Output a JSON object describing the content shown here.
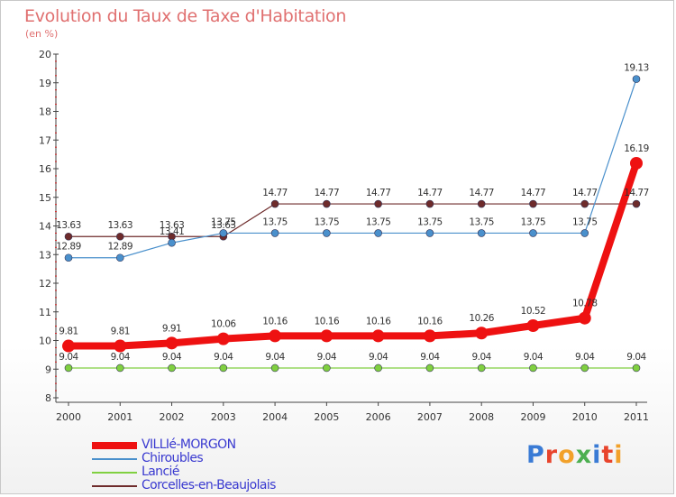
{
  "chart_data": {
    "type": "line",
    "title": "Evolution du Taux de Taxe d'Habitation",
    "subtitle": "(en %)",
    "x": [
      "2000",
      "2001",
      "2002",
      "2003",
      "2004",
      "2005",
      "2006",
      "2007",
      "2008",
      "2009",
      "2010",
      "2011"
    ],
    "ylim": [
      8,
      20
    ],
    "yticks": [
      "8",
      "9",
      "10",
      "11",
      "12",
      "13",
      "14",
      "15",
      "16",
      "17",
      "18",
      "19",
      "20"
    ],
    "grid": false,
    "legend_position": "bottom-left",
    "series": [
      {
        "name": "Corcelles-en-Beaujolais",
        "color": "#6e2b2b",
        "width": 1.2,
        "dot": 4,
        "values": [
          13.63,
          13.63,
          13.63,
          13.63,
          14.77,
          14.77,
          14.77,
          14.77,
          14.77,
          14.77,
          14.77,
          14.77
        ],
        "labels": [
          "13.63",
          "13.63",
          "13.63",
          "13.63",
          "14.77",
          "14.77",
          "14.77",
          "14.77",
          "14.77",
          "14.77",
          "14.77",
          "14.77"
        ]
      },
      {
        "name": "Chiroubles",
        "color": "#4a90cc",
        "width": 1.2,
        "dot": 4,
        "values": [
          12.89,
          12.89,
          13.41,
          13.75,
          13.75,
          13.75,
          13.75,
          13.75,
          13.75,
          13.75,
          13.75,
          19.13
        ],
        "labels": [
          "12.89",
          "12.89",
          "13.41",
          "13.75",
          "13.75",
          "13.75",
          "13.75",
          "13.75",
          "13.75",
          "13.75",
          "13.75",
          "19.13"
        ]
      },
      {
        "name": "Lancié",
        "color": "#80d040",
        "width": 1.2,
        "dot": 4,
        "values": [
          9.04,
          9.04,
          9.04,
          9.04,
          9.04,
          9.04,
          9.04,
          9.04,
          9.04,
          9.04,
          9.04,
          9.04
        ],
        "labels": [
          "9.04",
          "9.04",
          "9.04",
          "9.04",
          "9.04",
          "9.04",
          "9.04",
          "9.04",
          "9.04",
          "9.04",
          "9.04",
          "9.04"
        ]
      },
      {
        "name": "VILLIé-MORGON",
        "color": "#ee1111",
        "width": 8,
        "dot": 7,
        "values": [
          9.81,
          9.81,
          9.91,
          10.06,
          10.16,
          10.16,
          10.16,
          10.16,
          10.26,
          10.52,
          10.78,
          16.19
        ],
        "labels": [
          "9.81",
          "9.81",
          "9.91",
          "10.06",
          "10.16",
          "10.16",
          "10.16",
          "10.16",
          "10.26",
          "10.52",
          "10.78",
          "16.19"
        ]
      }
    ]
  },
  "legend": [
    {
      "label": "VILLIé-MORGON",
      "color": "#ee1111",
      "thickness": 8
    },
    {
      "label": "Chiroubles",
      "color": "#4a90cc",
      "thickness": 2
    },
    {
      "label": "Lancié",
      "color": "#80d040",
      "thickness": 2
    },
    {
      "label": "Corcelles-en-Beaujolais",
      "color": "#6e2b2b",
      "thickness": 2
    }
  ],
  "logo": {
    "text": "Proxiti",
    "colors": [
      "#3a7bd5",
      "#e8442c",
      "#f2a12a",
      "#4caf50",
      "#3a7bd5",
      "#e8442c",
      "#f2a12a"
    ]
  }
}
